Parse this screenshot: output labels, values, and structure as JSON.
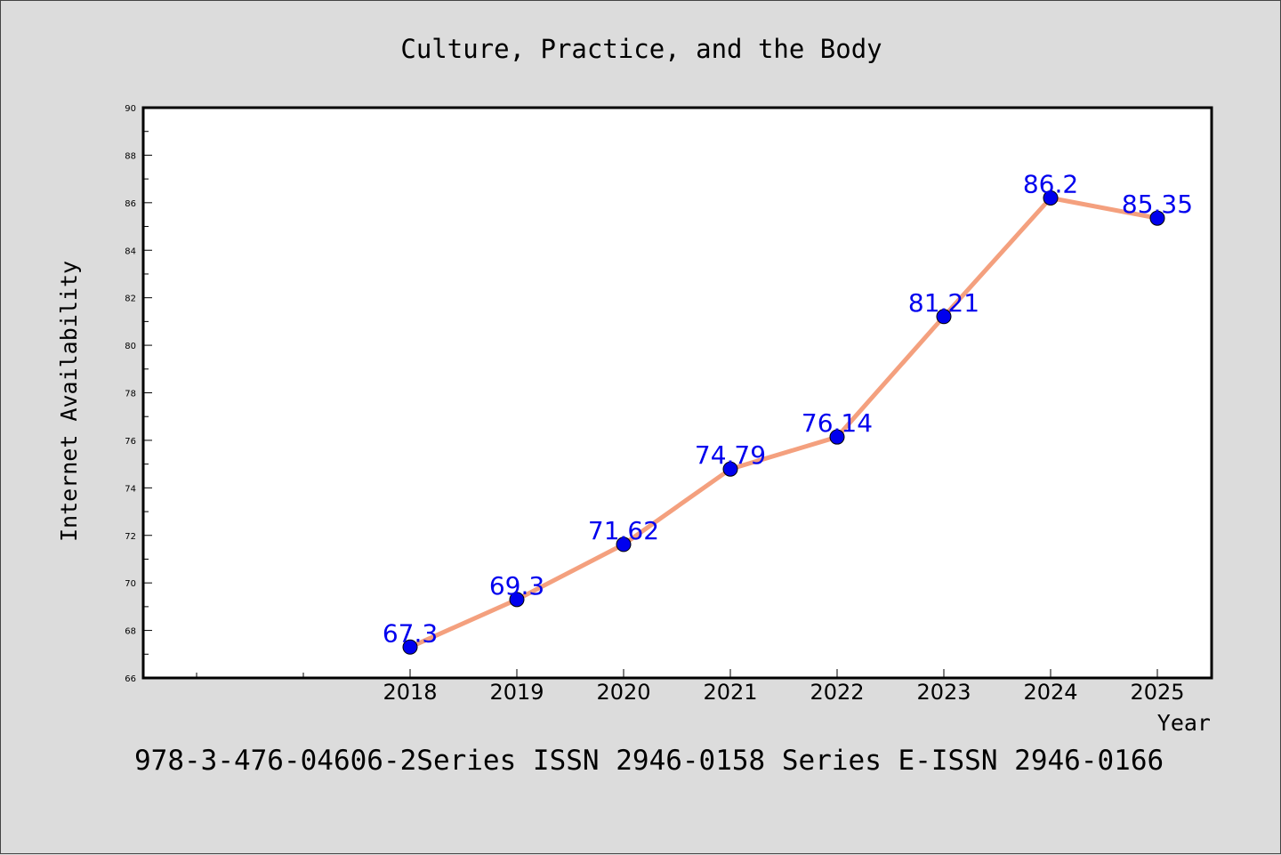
{
  "chart_data": {
    "type": "line",
    "title": "Culture, Practice, and the Body",
    "xlabel": "Year",
    "ylabel": "Internet Availability",
    "x": [
      "2018",
      "2019",
      "2020",
      "2021",
      "2022",
      "2023",
      "2024",
      "2025"
    ],
    "series": [
      {
        "values": [
          67.3,
          69.3,
          71.62,
          74.79,
          76.14,
          81.21,
          86.2,
          85.35
        ],
        "labels": [
          "67.3",
          "69.3",
          "71.62",
          "74.79",
          "76.14",
          "81.21",
          "86.2",
          "85.35"
        ]
      }
    ],
    "ylim": [
      66,
      90
    ],
    "yticks": [
      "66",
      "68",
      "70",
      "72",
      "74",
      "76",
      "78",
      "80",
      "82",
      "84",
      "86",
      "88",
      "90"
    ],
    "grid": false,
    "line_color": "#f4a07e",
    "marker_color": "#0000ee",
    "label_color": "#0000ee",
    "footer": "978-3-476-04606-2Series ISSN 2946-0158 Series E-ISSN 2946-0166"
  }
}
